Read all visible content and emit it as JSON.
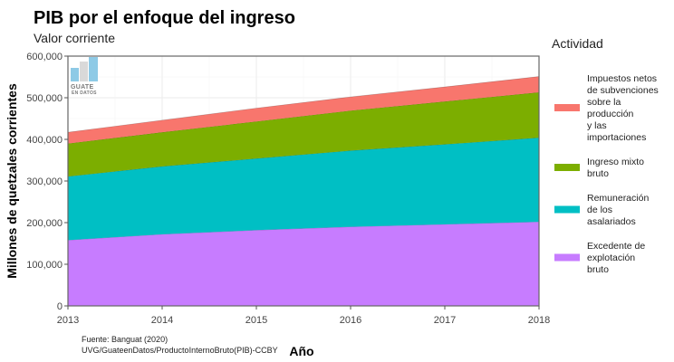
{
  "chart_data": {
    "type": "area",
    "stacked": true,
    "title": "PIB por el enfoque del ingreso",
    "subtitle": "Valor corriente",
    "xlabel": "Año",
    "ylabel": "Millones de quetzales corrientes",
    "x": [
      2013,
      2014,
      2015,
      2016,
      2017,
      2018
    ],
    "xticks": [
      "2013",
      "2014",
      "2015",
      "2016",
      "2017",
      "2018"
    ],
    "ylim": [
      0,
      600000
    ],
    "yticks": [
      0,
      100000,
      200000,
      300000,
      400000,
      500000,
      600000
    ],
    "ytick_labels": [
      "0",
      "100,000",
      "200,000",
      "300,000",
      "400,000",
      "500,000",
      "600,000"
    ],
    "grid": true,
    "legend_title": "Actividad",
    "legend_position": "right",
    "series": [
      {
        "name": "Excedente de explotación bruto",
        "legend_lines": [
          "Excedente de",
          "explotación",
          "bruto"
        ],
        "color": "#C77CFF",
        "values": [
          158000,
          172000,
          182000,
          190000,
          196000,
          202000
        ]
      },
      {
        "name": "Remuneración de los asalariados",
        "legend_lines": [
          "Remuneración",
          "de los",
          "asalariados"
        ],
        "color": "#00BFC4",
        "values": [
          153000,
          163000,
          172000,
          183000,
          192000,
          202000
        ]
      },
      {
        "name": "Ingreso mixto bruto",
        "legend_lines": [
          "Ingreso mixto",
          "bruto"
        ],
        "color": "#7CAE00",
        "values": [
          79000,
          82000,
          89000,
          96000,
          103000,
          109000
        ]
      },
      {
        "name": "Impuestos netos de subvenciones sobre la producción y las importaciones",
        "legend_lines": [
          "Impuestos netos",
          "de subvenciones",
          "sobre la",
          "producción",
          "y las",
          "importaciones"
        ],
        "color": "#F8766D",
        "values": [
          27000,
          29000,
          32000,
          33000,
          35000,
          38000
        ]
      }
    ],
    "legend_order": [
      3,
      2,
      1,
      0
    ],
    "caption_lines": [
      "Fuente: Banguat (2020)",
      "UVG/GuateenDatos/ProductoInternoBruto(PIB)-CCBY"
    ],
    "logo": {
      "line1": "GUATE",
      "line2": "EN DATOS",
      "bar_colors": [
        "#8ecae6",
        "#d9d9d9",
        "#8ecae6"
      ]
    }
  }
}
